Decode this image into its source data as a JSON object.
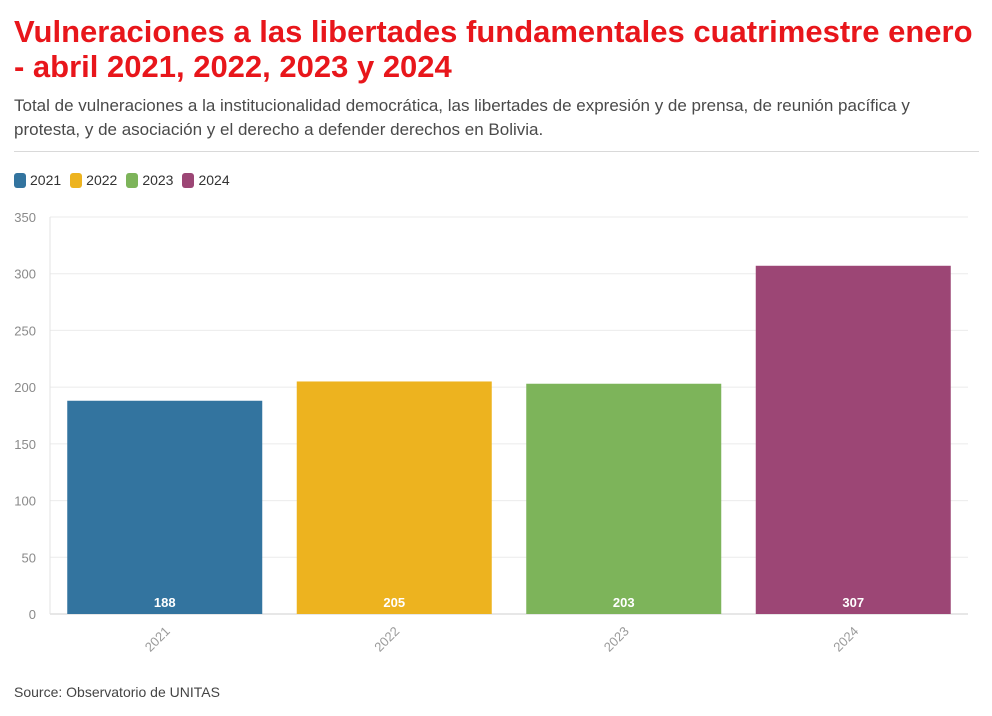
{
  "title": "Vulneraciones a las libertades fundamentales cuatrimestre enero - abril 2021, 2022, 2023 y 2024",
  "subtitle": "Total de vulneraciones a la institucionalidad democrática, las libertades de expresión y de prensa, de reunión pacífica y protesta, y de asociación y el derecho a defender derechos en Bolivia.",
  "source": "Source: Observatorio de UNITAS",
  "legend": [
    {
      "label": "2021",
      "color": "#33749f"
    },
    {
      "label": "2022",
      "color": "#edb31f"
    },
    {
      "label": "2023",
      "color": "#7db45a"
    },
    {
      "label": "2024",
      "color": "#9c4675"
    }
  ],
  "chart_data": {
    "type": "bar",
    "categories": [
      "2021",
      "2022",
      "2023",
      "2024"
    ],
    "values": [
      188,
      205,
      203,
      307
    ],
    "colors": [
      "#33749f",
      "#edb31f",
      "#7db45a",
      "#9c4675"
    ],
    "ylim": [
      0,
      350
    ],
    "yticks": [
      "0",
      "50",
      "100",
      "150",
      "200",
      "250",
      "300",
      "350"
    ],
    "grid": true,
    "legend_position": "top-left",
    "data_labels": [
      "188",
      "205",
      "203",
      "307"
    ]
  }
}
